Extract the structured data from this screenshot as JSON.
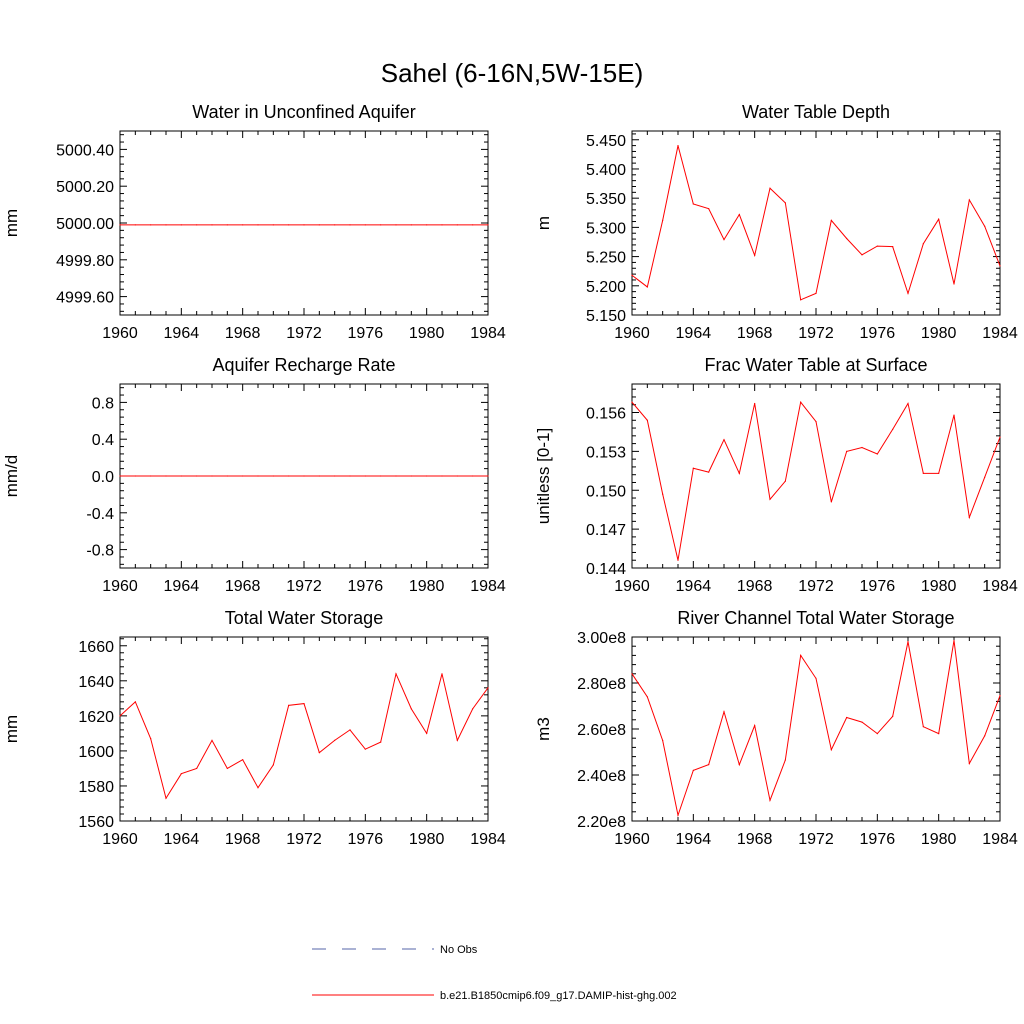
{
  "figure": {
    "title": "Sahel (6-16N,5W-15E)"
  },
  "legend": {
    "items": [
      {
        "label": "No Obs",
        "color": "#5566aa",
        "style": "dashed"
      },
      {
        "label": "b.e21.B1850cmip6.f09_g17.DAMIP-hist-ghg.002",
        "color": "#ff0000",
        "style": "solid"
      }
    ]
  },
  "chart_data": [
    {
      "type": "line",
      "title": "Water in Unconfined Aquifer",
      "xlabel": "",
      "ylabel": "mm",
      "xlim": [
        1960,
        1984
      ],
      "ylim": [
        4999.5,
        5000.5
      ],
      "xticks": [
        1960,
        1964,
        1968,
        1972,
        1976,
        1980,
        1984
      ],
      "xtick_labels": [
        "1960",
        "1964",
        "1968",
        "1972",
        "1976",
        "1980",
        "1984"
      ],
      "yticks": [
        4999.6,
        4999.8,
        5000.0,
        5000.2,
        5000.4
      ],
      "ytick_labels": [
        "4999.60",
        "4999.80",
        "5000.00",
        "5000.20",
        "5000.40"
      ],
      "grid": false,
      "x": [
        1960,
        1961,
        1962,
        1963,
        1964,
        1965,
        1966,
        1967,
        1968,
        1969,
        1970,
        1971,
        1972,
        1973,
        1974,
        1975,
        1976,
        1977,
        1978,
        1979,
        1980,
        1981,
        1982,
        1983,
        1984
      ],
      "series": [
        {
          "color": "#ff0000",
          "values": [
            4999.99,
            4999.99,
            4999.99,
            4999.99,
            4999.99,
            4999.99,
            4999.99,
            4999.99,
            4999.99,
            4999.99,
            4999.99,
            4999.99,
            4999.99,
            4999.99,
            4999.99,
            4999.99,
            4999.99,
            4999.99,
            4999.99,
            4999.99,
            4999.99,
            4999.99,
            4999.99,
            4999.99,
            4999.99
          ]
        }
      ]
    },
    {
      "type": "line",
      "title": "Water Table Depth",
      "xlabel": "",
      "ylabel": "m",
      "xlim": [
        1960,
        1984
      ],
      "ylim": [
        5.15,
        5.465
      ],
      "xticks": [
        1960,
        1964,
        1968,
        1972,
        1976,
        1980,
        1984
      ],
      "xtick_labels": [
        "1960",
        "1964",
        "1968",
        "1972",
        "1976",
        "1980",
        "1984"
      ],
      "yticks": [
        5.15,
        5.2,
        5.25,
        5.3,
        5.35,
        5.4,
        5.45
      ],
      "ytick_labels": [
        "5.150",
        "5.200",
        "5.250",
        "5.300",
        "5.350",
        "5.400",
        "5.450"
      ],
      "grid": false,
      "x": [
        1960,
        1961,
        1962,
        1963,
        1964,
        1965,
        1966,
        1967,
        1968,
        1969,
        1970,
        1971,
        1972,
        1973,
        1974,
        1975,
        1976,
        1977,
        1978,
        1979,
        1980,
        1981,
        1982,
        1983,
        1984
      ],
      "series": [
        {
          "color": "#ff0000",
          "values": [
            5.218,
            5.198,
            5.312,
            5.44,
            5.34,
            5.332,
            5.279,
            5.322,
            5.252,
            5.367,
            5.342,
            5.176,
            5.187,
            5.312,
            5.281,
            5.253,
            5.268,
            5.267,
            5.187,
            5.272,
            5.314,
            5.203,
            5.347,
            5.302,
            5.234
          ]
        }
      ]
    },
    {
      "type": "line",
      "title": "Aquifer Recharge Rate",
      "xlabel": "",
      "ylabel": "mm/d",
      "xlim": [
        1960,
        1984
      ],
      "ylim": [
        -1.0,
        1.0
      ],
      "xticks": [
        1960,
        1964,
        1968,
        1972,
        1976,
        1980,
        1984
      ],
      "xtick_labels": [
        "1960",
        "1964",
        "1968",
        "1972",
        "1976",
        "1980",
        "1984"
      ],
      "yticks": [
        -0.8,
        -0.4,
        0.0,
        0.4,
        0.8
      ],
      "ytick_labels": [
        "-0.8",
        "-0.4",
        "0.0",
        "0.4",
        "0.8"
      ],
      "grid": false,
      "x": [
        1960,
        1961,
        1962,
        1963,
        1964,
        1965,
        1966,
        1967,
        1968,
        1969,
        1970,
        1971,
        1972,
        1973,
        1974,
        1975,
        1976,
        1977,
        1978,
        1979,
        1980,
        1981,
        1982,
        1983,
        1984
      ],
      "series": [
        {
          "color": "#ff0000",
          "values": [
            0,
            0,
            0,
            0,
            0,
            0,
            0,
            0,
            0,
            0,
            0,
            0,
            0,
            0,
            0,
            0,
            0,
            0,
            0,
            0,
            0,
            0,
            0,
            0,
            0
          ]
        }
      ]
    },
    {
      "type": "line",
      "title": "Frac Water Table at Surface",
      "xlabel": "",
      "ylabel": "unitless [0-1]",
      "xlim": [
        1960,
        1984
      ],
      "ylim": [
        0.144,
        0.1582
      ],
      "xticks": [
        1960,
        1964,
        1968,
        1972,
        1976,
        1980,
        1984
      ],
      "xtick_labels": [
        "1960",
        "1964",
        "1968",
        "1972",
        "1976",
        "1980",
        "1984"
      ],
      "yticks": [
        0.144,
        0.147,
        0.15,
        0.153,
        0.156
      ],
      "ytick_labels": [
        "0.144",
        "0.147",
        "0.150",
        "0.153",
        "0.156"
      ],
      "grid": false,
      "x": [
        1960,
        1961,
        1962,
        1963,
        1964,
        1965,
        1966,
        1967,
        1968,
        1969,
        1970,
        1971,
        1972,
        1973,
        1974,
        1975,
        1976,
        1977,
        1978,
        1979,
        1980,
        1981,
        1982,
        1983,
        1984
      ],
      "series": [
        {
          "color": "#ff0000",
          "values": [
            0.1568,
            0.1554,
            0.1497,
            0.1446,
            0.1517,
            0.1514,
            0.1539,
            0.1513,
            0.1567,
            0.1493,
            0.1507,
            0.1568,
            0.1553,
            0.1491,
            0.153,
            0.1533,
            0.1528,
            0.1547,
            0.1567,
            0.1513,
            0.1513,
            0.1558,
            0.1479,
            0.151,
            0.1541
          ]
        }
      ]
    },
    {
      "type": "line",
      "title": "Total Water Storage",
      "xlabel": "",
      "ylabel": "mm",
      "xlim": [
        1960,
        1984
      ],
      "ylim": [
        1560,
        1665
      ],
      "xticks": [
        1960,
        1964,
        1968,
        1972,
        1976,
        1980,
        1984
      ],
      "xtick_labels": [
        "1960",
        "1964",
        "1968",
        "1972",
        "1976",
        "1980",
        "1984"
      ],
      "yticks": [
        1560,
        1580,
        1600,
        1620,
        1640,
        1660
      ],
      "ytick_labels": [
        "1560",
        "1580",
        "1600",
        "1620",
        "1640",
        "1660"
      ],
      "grid": false,
      "x": [
        1960,
        1961,
        1962,
        1963,
        1964,
        1965,
        1966,
        1967,
        1968,
        1969,
        1970,
        1971,
        1972,
        1973,
        1974,
        1975,
        1976,
        1977,
        1978,
        1979,
        1980,
        1981,
        1982,
        1983,
        1984
      ],
      "series": [
        {
          "color": "#ff0000",
          "values": [
            1620,
            1628,
            1607,
            1573,
            1587,
            1590,
            1606,
            1590,
            1595,
            1579,
            1592,
            1626,
            1627,
            1599,
            1606,
            1612,
            1601,
            1605,
            1644,
            1624,
            1610,
            1644,
            1606,
            1624,
            1636
          ]
        }
      ]
    },
    {
      "type": "line",
      "title": "River Channel Total Water Storage",
      "xlabel": "",
      "ylabel": "m3",
      "xlim": [
        1960,
        1984
      ],
      "ylim": [
        220000000.0,
        300000000.0
      ],
      "xticks": [
        1960,
        1964,
        1968,
        1972,
        1976,
        1980,
        1984
      ],
      "xtick_labels": [
        "1960",
        "1964",
        "1968",
        "1972",
        "1976",
        "1980",
        "1984"
      ],
      "yticks": [
        220000000.0,
        240000000.0,
        260000000.0,
        280000000.0,
        300000000.0
      ],
      "ytick_labels": [
        "2.20e8",
        "2.40e8",
        "2.60e8",
        "2.80e8",
        "3.00e8"
      ],
      "grid": false,
      "x": [
        1960,
        1961,
        1962,
        1963,
        1964,
        1965,
        1966,
        1967,
        1968,
        1969,
        1970,
        1971,
        1972,
        1973,
        1974,
        1975,
        1976,
        1977,
        1978,
        1979,
        1980,
        1981,
        1982,
        1983,
        1984
      ],
      "series": [
        {
          "color": "#ff0000",
          "values": [
            284000000.0,
            274000000.0,
            255000000.0,
            222500000.0,
            242000000.0,
            244500000.0,
            267500000.0,
            244500000.0,
            261500000.0,
            229000000.0,
            246500000.0,
            292000000.0,
            282000000.0,
            251000000.0,
            265000000.0,
            263000000.0,
            258000000.0,
            265500000.0,
            298000000.0,
            261000000.0,
            258000000.0,
            298500000.0,
            245000000.0,
            257000000.0,
            274500000.0
          ]
        }
      ]
    }
  ]
}
